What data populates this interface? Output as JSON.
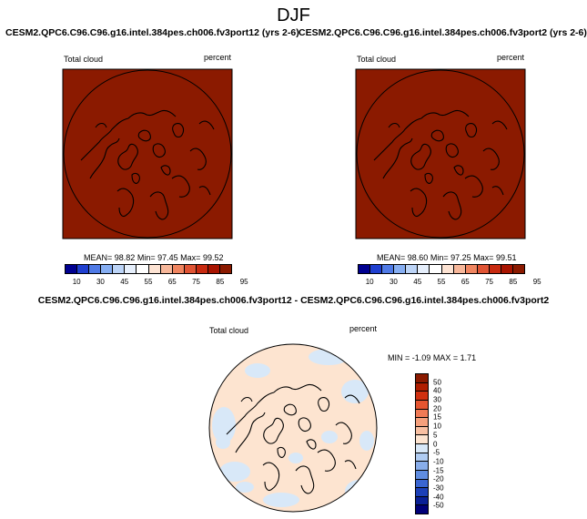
{
  "season": "DJF",
  "panels": [
    {
      "title": "CESM2.QPC6.C96.C96.g16.intel.384pes.ch006.fv3port12 (yrs 2-6)",
      "variable": "Total cloud",
      "units": "percent",
      "stats": {
        "mean": "98.82",
        "min": "97.45",
        "max": "99.52"
      },
      "field_color": "#8b1a00"
    },
    {
      "title": "CESM2.QPC6.C96.C96.g16.intel.384pes.ch006.fv3port2 (yrs 2-6)",
      "variable": "Total cloud",
      "units": "percent",
      "stats": {
        "mean": "98.60",
        "min": "97.25",
        "max": "99.51"
      },
      "field_color": "#8b1a00"
    }
  ],
  "stat_labels": {
    "mean": "MEAN=",
    "min": "Min=",
    "max": "Max="
  },
  "colorbar": {
    "labels": [
      "10",
      "30",
      "45",
      "55",
      "65",
      "75",
      "85",
      "95"
    ],
    "colors": [
      "#000090",
      "#1f3fd0",
      "#4f7ae6",
      "#86aef2",
      "#bcd4f7",
      "#e6effc",
      "#ffffff",
      "#fde3d3",
      "#f7b79a",
      "#f08560",
      "#e05434",
      "#c82a10",
      "#a81400",
      "#8b1a00"
    ]
  },
  "diff_panel": {
    "title": "CESM2.QPC6.C96.C96.g16.intel.384pes.ch006.fv3port12 - CESM2.QPC6.C96.C96.g16.intel.384pes.ch006.fv3port2",
    "variable": "Total cloud",
    "units": "percent",
    "min_label": "MIN =",
    "max_label": "MAX =",
    "min": "-1.09",
    "max": "1.71",
    "background_color": "#fde4d0",
    "patch_color": "#d8e8f8"
  },
  "diff_colorbar": {
    "labels": [
      "50",
      "40",
      "30",
      "20",
      "15",
      "10",
      "5",
      "0",
      "-5",
      "-10",
      "-15",
      "-20",
      "-30",
      "-40",
      "-50"
    ],
    "colors": [
      "#8b1a00",
      "#b01e00",
      "#d03010",
      "#e55530",
      "#f07a55",
      "#f6a07c",
      "#f9c0a2",
      "#fde4d0",
      "#d8e8f8",
      "#b0ccf2",
      "#88adea",
      "#5f8ce0",
      "#3a66d2",
      "#1c40b8",
      "#0a2096",
      "#000078"
    ]
  }
}
